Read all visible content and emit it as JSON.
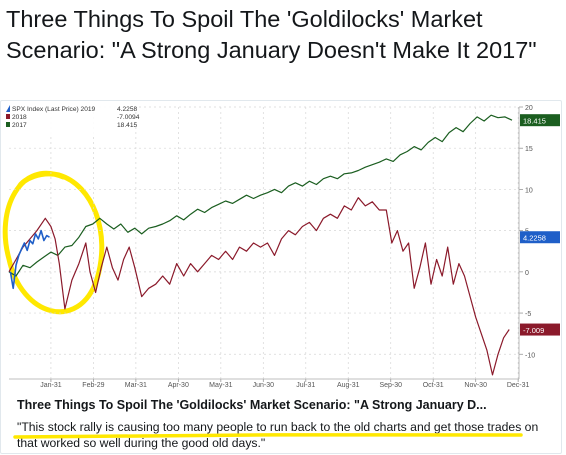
{
  "tweet": {
    "headline": "Three Things To Spoil The 'Goldilocks' Market Scenario: \"A Strong January Doesn't Make It 2017\""
  },
  "card": {
    "title": "Three Things To Spoil The 'Goldilocks' Market Scenario: \"A Strong January D...",
    "description": "\"This stock rally is causing too many people to run back to the old charts and get those trades on that worked so well during the good old days.\""
  },
  "colors": {
    "s2019": "#1f5fc8",
    "s2018": "#8b1a2b",
    "s2017": "#1b5e20",
    "highlight": "#ffe800"
  },
  "chart_data": {
    "type": "line",
    "legend_title": "SPX Index (Last Price) 2019",
    "legend_position": "top-left",
    "grid": true,
    "x_ticks": [
      "Jan-31",
      "Feb-29",
      "Mar-31",
      "Apr-30",
      "May-31",
      "Jun-30",
      "Jul-31",
      "Aug-31",
      "Sep-30",
      "Oct-31",
      "Nov-30",
      "Dec-31"
    ],
    "xlim": [
      0,
      365
    ],
    "ylim": [
      -13,
      20
    ],
    "y_ticks": [
      -10,
      -5,
      0,
      5,
      10,
      15,
      20
    ],
    "y_tick_labels": [
      "-10",
      "-5",
      "0",
      "5",
      "10",
      "15",
      "20"
    ],
    "series": [
      {
        "name": "2019",
        "legend_value": "4.2258",
        "last_label": "4.2258",
        "x": [
          1,
          3,
          5,
          7,
          9,
          11,
          13,
          15,
          17,
          19,
          21,
          23,
          25,
          27,
          29
        ],
        "y": [
          0.0,
          -2.0,
          0.8,
          2.0,
          2.8,
          3.5,
          2.6,
          3.8,
          3.4,
          4.6,
          4.0,
          5.0,
          3.8,
          4.4,
          4.2
        ]
      },
      {
        "name": "2018",
        "legend_value": "-7.0094",
        "last_label": "-7.009",
        "x": [
          0,
          5,
          10,
          15,
          20,
          26,
          30,
          33,
          36,
          40,
          45,
          50,
          55,
          58,
          62,
          66,
          70,
          74,
          78,
          82,
          86,
          90,
          95,
          100,
          105,
          110,
          115,
          120,
          125,
          130,
          135,
          140,
          145,
          150,
          155,
          160,
          165,
          170,
          175,
          180,
          185,
          190,
          195,
          200,
          205,
          210,
          215,
          220,
          225,
          230,
          235,
          240,
          245,
          250,
          255,
          260,
          265,
          270,
          274,
          278,
          282,
          286,
          290,
          294,
          298,
          302,
          306,
          310,
          314,
          318,
          322,
          326,
          330,
          334,
          338,
          342,
          346,
          350,
          354,
          358
        ],
        "y": [
          0.0,
          1.5,
          3.0,
          4.0,
          5.0,
          6.5,
          5.5,
          4.0,
          1.0,
          -4.5,
          -1.0,
          1.0,
          3.5,
          0.0,
          -2.5,
          0.5,
          3.0,
          0.5,
          -1.0,
          1.5,
          3.0,
          0.5,
          -3.0,
          -2.0,
          -1.5,
          -0.5,
          -1.5,
          1.0,
          -0.5,
          1.0,
          0.0,
          1.0,
          2.0,
          1.5,
          2.5,
          1.5,
          3.0,
          2.5,
          3.5,
          3.0,
          3.5,
          2.0,
          4.0,
          5.0,
          4.5,
          5.5,
          6.0,
          5.0,
          6.5,
          7.0,
          6.5,
          8.0,
          7.5,
          9.0,
          8.0,
          8.5,
          7.5,
          7.5,
          3.5,
          5.0,
          2.5,
          3.5,
          -2.0,
          0.5,
          3.5,
          -1.5,
          1.5,
          -0.5,
          3.0,
          -1.5,
          1.0,
          -0.5,
          -3.0,
          -5.5,
          -7.5,
          -9.5,
          -12.5,
          -10.0,
          -8.0,
          -7.0
        ]
      },
      {
        "name": "2017",
        "legend_value": "18.415",
        "last_label": "18.415",
        "x": [
          0,
          5,
          10,
          15,
          20,
          25,
          30,
          35,
          40,
          45,
          50,
          55,
          60,
          65,
          70,
          75,
          80,
          85,
          90,
          95,
          100,
          105,
          110,
          115,
          120,
          125,
          130,
          135,
          140,
          145,
          150,
          155,
          160,
          165,
          170,
          175,
          180,
          185,
          190,
          195,
          200,
          205,
          210,
          215,
          220,
          225,
          230,
          235,
          240,
          245,
          250,
          255,
          260,
          265,
          270,
          275,
          280,
          285,
          290,
          295,
          300,
          305,
          310,
          315,
          320,
          325,
          330,
          335,
          340,
          345,
          350,
          355,
          360
        ],
        "y": [
          0.0,
          -0.5,
          0.8,
          0.5,
          1.2,
          1.8,
          2.4,
          2.0,
          3.0,
          3.2,
          4.2,
          5.5,
          5.8,
          6.5,
          5.8,
          5.2,
          5.8,
          4.8,
          5.3,
          4.6,
          5.3,
          5.5,
          5.8,
          6.2,
          6.8,
          6.3,
          7.0,
          7.6,
          7.2,
          7.8,
          8.2,
          8.6,
          8.3,
          8.8,
          9.3,
          8.9,
          9.3,
          9.6,
          10.0,
          9.6,
          10.4,
          10.8,
          10.4,
          11.0,
          10.6,
          11.3,
          11.6,
          11.3,
          11.9,
          12.0,
          12.3,
          12.7,
          13.0,
          13.3,
          13.7,
          13.4,
          14.2,
          14.6,
          15.2,
          14.8,
          15.7,
          16.3,
          15.8,
          16.9,
          17.5,
          17.0,
          18.0,
          18.8,
          18.3,
          19.0,
          18.7,
          18.8,
          18.4
        ]
      }
    ]
  }
}
